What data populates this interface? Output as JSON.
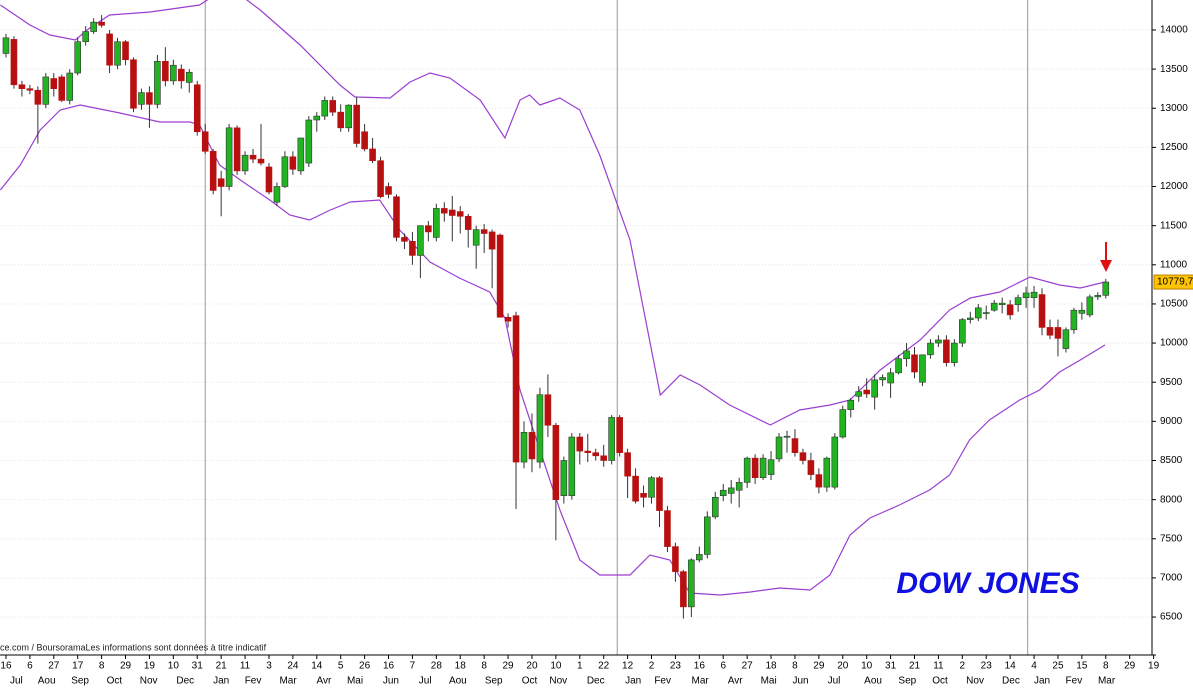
{
  "chart_data": {
    "type": "candlestick",
    "title": "DOW JONES",
    "source": "ce.com / BoursoramaLes informations sont données à titre indicatif",
    "up_color": "#22b322",
    "down_color": "#b81010",
    "band_color": "#9a3fd0",
    "grid": true,
    "ylim": [
      6015,
      14383
    ],
    "yticks": [
      6500,
      7000,
      7500,
      8000,
      8500,
      9000,
      9500,
      10000,
      10500,
      11000,
      11500,
      12000,
      12500,
      13000,
      13500,
      14000
    ],
    "xlim": [
      -0.75,
      143.8
    ],
    "last_price": {
      "value": 10779.7,
      "label": "10779,7"
    },
    "year_lines": [
      25.0,
      76.7,
      128.2
    ],
    "xticks": [
      {
        "value": 0,
        "label": "16"
      },
      {
        "value": 3,
        "label": "6"
      },
      {
        "value": 6,
        "label": "27"
      },
      {
        "value": 9,
        "label": "17"
      },
      {
        "value": 12,
        "label": "8"
      },
      {
        "value": 15,
        "label": "29"
      },
      {
        "value": 18,
        "label": "19"
      },
      {
        "value": 21,
        "label": "10"
      },
      {
        "value": 24,
        "label": "31"
      },
      {
        "value": 27,
        "label": "21"
      },
      {
        "value": 30,
        "label": "11"
      },
      {
        "value": 33,
        "label": "3"
      },
      {
        "value": 36,
        "label": "24"
      },
      {
        "value": 39,
        "label": "14"
      },
      {
        "value": 42,
        "label": "5"
      },
      {
        "value": 45,
        "label": "26"
      },
      {
        "value": 48,
        "label": "16"
      },
      {
        "value": 51,
        "label": "7"
      },
      {
        "value": 54,
        "label": "28"
      },
      {
        "value": 57,
        "label": "18"
      },
      {
        "value": 60,
        "label": "8"
      },
      {
        "value": 63,
        "label": "29"
      },
      {
        "value": 66,
        "label": "20"
      },
      {
        "value": 69,
        "label": "10"
      },
      {
        "value": 72,
        "label": "1"
      },
      {
        "value": 75,
        "label": "22"
      },
      {
        "value": 78,
        "label": "12"
      },
      {
        "value": 81,
        "label": "2"
      },
      {
        "value": 84,
        "label": "23"
      },
      {
        "value": 87,
        "label": "16"
      },
      {
        "value": 90,
        "label": "6"
      },
      {
        "value": 93,
        "label": "27"
      },
      {
        "value": 96,
        "label": "18"
      },
      {
        "value": 99,
        "label": "8"
      },
      {
        "value": 102,
        "label": "29"
      },
      {
        "value": 105,
        "label": "20"
      },
      {
        "value": 108,
        "label": "10"
      },
      {
        "value": 111,
        "label": "31"
      },
      {
        "value": 114,
        "label": "21"
      },
      {
        "value": 117,
        "label": "11"
      },
      {
        "value": 120,
        "label": "2"
      },
      {
        "value": 123,
        "label": "23"
      },
      {
        "value": 126,
        "label": "14"
      },
      {
        "value": 129,
        "label": "4"
      },
      {
        "value": 132,
        "label": "25"
      },
      {
        "value": 135,
        "label": "15"
      },
      {
        "value": 138,
        "label": "8"
      },
      {
        "value": 141,
        "label": "29"
      },
      {
        "value": 144,
        "label": "19"
      }
    ],
    "month_ticks": [
      {
        "value": 1.3,
        "label": "Jul"
      },
      {
        "value": 5.1,
        "label": "Aou"
      },
      {
        "value": 9.3,
        "label": "Sep"
      },
      {
        "value": 13.6,
        "label": "Oct"
      },
      {
        "value": 17.9,
        "label": "Nov"
      },
      {
        "value": 22.5,
        "label": "Dec"
      },
      {
        "value": 27.0,
        "label": "Jan"
      },
      {
        "value": 31.0,
        "label": "Fev"
      },
      {
        "value": 35.4,
        "label": "Mar"
      },
      {
        "value": 39.9,
        "label": "Avr"
      },
      {
        "value": 43.8,
        "label": "Mai"
      },
      {
        "value": 48.3,
        "label": "Jun"
      },
      {
        "value": 52.6,
        "label": "Jul"
      },
      {
        "value": 56.7,
        "label": "Aou"
      },
      {
        "value": 61.2,
        "label": "Sep"
      },
      {
        "value": 65.7,
        "label": "Oct"
      },
      {
        "value": 69.3,
        "label": "Nov"
      },
      {
        "value": 74.0,
        "label": "Dec"
      },
      {
        "value": 78.7,
        "label": "Jan"
      },
      {
        "value": 82.4,
        "label": "Fev"
      },
      {
        "value": 87.1,
        "label": "Mar"
      },
      {
        "value": 91.5,
        "label": "Avr"
      },
      {
        "value": 95.7,
        "label": "Mai"
      },
      {
        "value": 99.7,
        "label": "Jun"
      },
      {
        "value": 103.9,
        "label": "Jul"
      },
      {
        "value": 108.8,
        "label": "Aou"
      },
      {
        "value": 113.1,
        "label": "Sep"
      },
      {
        "value": 117.2,
        "label": "Oct"
      },
      {
        "value": 121.6,
        "label": "Nov"
      },
      {
        "value": 126.1,
        "label": "Dec"
      },
      {
        "value": 130.0,
        "label": "Jan"
      },
      {
        "value": 134.0,
        "label": "Fev"
      },
      {
        "value": 138.1,
        "label": "Mar"
      }
    ],
    "ohlc": [
      [
        13700,
        13950,
        13650,
        13900
      ],
      [
        13880,
        13920,
        13250,
        13300
      ],
      [
        13300,
        13350,
        13150,
        13250
      ],
      [
        13250,
        13300,
        13180,
        13230
      ],
      [
        13230,
        13280,
        12550,
        13050
      ],
      [
        13050,
        13450,
        13000,
        13400
      ],
      [
        13380,
        13450,
        13150,
        13250
      ],
      [
        13400,
        13430,
        13080,
        13100
      ],
      [
        13100,
        13500,
        13050,
        13450
      ],
      [
        13450,
        13900,
        13420,
        13850
      ],
      [
        13850,
        14050,
        13800,
        13980
      ],
      [
        13980,
        14150,
        13950,
        14100
      ],
      [
        14100,
        14190,
        14030,
        14060
      ],
      [
        13950,
        14000,
        13450,
        13550
      ],
      [
        13550,
        13900,
        13500,
        13850
      ],
      [
        13850,
        13870,
        13550,
        13620
      ],
      [
        13620,
        13650,
        12950,
        13000
      ],
      [
        13050,
        13250,
        12980,
        13200
      ],
      [
        13200,
        13280,
        12750,
        13050
      ],
      [
        13050,
        13680,
        13000,
        13600
      ],
      [
        13600,
        13780,
        13280,
        13350
      ],
      [
        13350,
        13620,
        13300,
        13550
      ],
      [
        13500,
        13560,
        13250,
        13350
      ],
      [
        13330,
        13500,
        13200,
        13460
      ],
      [
        13300,
        13350,
        12650,
        12700
      ],
      [
        12700,
        12800,
        12420,
        12450
      ],
      [
        12450,
        12480,
        11900,
        11950
      ],
      [
        12100,
        12200,
        11620,
        12000
      ],
      [
        12000,
        12800,
        11950,
        12750
      ],
      [
        12750,
        12780,
        12150,
        12200
      ],
      [
        12200,
        12450,
        12150,
        12400
      ],
      [
        12400,
        12480,
        12300,
        12350
      ],
      [
        12350,
        12800,
        12270,
        12300
      ],
      [
        12250,
        12300,
        11900,
        11930
      ],
      [
        11800,
        12050,
        11750,
        12000
      ],
      [
        12000,
        12450,
        11980,
        12380
      ],
      [
        12380,
        12450,
        12150,
        12220
      ],
      [
        12200,
        12620,
        12150,
        12620
      ],
      [
        12300,
        12900,
        12250,
        12850
      ],
      [
        12850,
        12950,
        12700,
        12900
      ],
      [
        12900,
        13150,
        12850,
        13100
      ],
      [
        13100,
        13150,
        12900,
        12950
      ],
      [
        12950,
        13050,
        12700,
        12750
      ],
      [
        12750,
        13050,
        12700,
        13040
      ],
      [
        13040,
        13150,
        12500,
        12550
      ],
      [
        12700,
        12800,
        12450,
        12480
      ],
      [
        12480,
        12620,
        12300,
        12330
      ],
      [
        12330,
        12380,
        11850,
        11870
      ],
      [
        12000,
        12050,
        11850,
        11900
      ],
      [
        11870,
        11900,
        11300,
        11350
      ],
      [
        11350,
        11400,
        11200,
        11300
      ],
      [
        11300,
        11420,
        11000,
        11120
      ],
      [
        11120,
        11500,
        10830,
        11500
      ],
      [
        11500,
        11560,
        11300,
        11420
      ],
      [
        11350,
        11780,
        11300,
        11720
      ],
      [
        11720,
        11800,
        11550,
        11660
      ],
      [
        11700,
        11880,
        11300,
        11630
      ],
      [
        11680,
        11750,
        11400,
        11620
      ],
      [
        11620,
        11650,
        11220,
        11450
      ],
      [
        11250,
        11500,
        10950,
        11450
      ],
      [
        11450,
        11520,
        11150,
        11400
      ],
      [
        11420,
        11450,
        10700,
        11200
      ],
      [
        11380,
        11400,
        10350,
        10330
      ],
      [
        10330,
        10380,
        10200,
        10280
      ],
      [
        10350,
        10400,
        7880,
        8480
      ],
      [
        8480,
        9000,
        8400,
        8860
      ],
      [
        8860,
        9100,
        8350,
        8520
      ],
      [
        8480,
        9430,
        8400,
        9340
      ],
      [
        9340,
        9600,
        8800,
        8950
      ],
      [
        8950,
        8980,
        7480,
        8000
      ],
      [
        8050,
        8550,
        7950,
        8500
      ],
      [
        8050,
        8850,
        8000,
        8800
      ],
      [
        8800,
        8850,
        8450,
        8620
      ],
      [
        8620,
        8840,
        8480,
        8600
      ],
      [
        8600,
        8650,
        8500,
        8560
      ],
      [
        8560,
        8700,
        8420,
        8500
      ],
      [
        8500,
        9080,
        8450,
        9050
      ],
      [
        9050,
        9080,
        8550,
        8600
      ],
      [
        8600,
        8650,
        8020,
        8300
      ],
      [
        8300,
        8400,
        7950,
        7980
      ],
      [
        8080,
        8180,
        7900,
        8030
      ],
      [
        8030,
        8300,
        7950,
        8280
      ],
      [
        8280,
        8300,
        7650,
        7860
      ],
      [
        7860,
        7920,
        7330,
        7400
      ],
      [
        7400,
        7450,
        6950,
        7080
      ],
      [
        7080,
        7100,
        6480,
        6630
      ],
      [
        6630,
        7250,
        6500,
        7230
      ],
      [
        7230,
        7400,
        7200,
        7300
      ],
      [
        7300,
        7850,
        7250,
        7780
      ],
      [
        7780,
        8100,
        7750,
        8030
      ],
      [
        8050,
        8200,
        7980,
        8120
      ],
      [
        8080,
        8250,
        7950,
        8150
      ],
      [
        8120,
        8280,
        7900,
        8220
      ],
      [
        8220,
        8550,
        8150,
        8530
      ],
      [
        8530,
        8580,
        8200,
        8280
      ],
      [
        8280,
        8580,
        8250,
        8530
      ],
      [
        8320,
        8620,
        8250,
        8510
      ],
      [
        8520,
        8850,
        8480,
        8800
      ],
      [
        8800,
        8880,
        8600,
        8810
      ],
      [
        8780,
        8900,
        8550,
        8600
      ],
      [
        8600,
        8650,
        8450,
        8500
      ],
      [
        8500,
        8600,
        8250,
        8320
      ],
      [
        8320,
        8400,
        8080,
        8160
      ],
      [
        8160,
        8550,
        8100,
        8530
      ],
      [
        8160,
        8850,
        8130,
        8800
      ],
      [
        8800,
        9200,
        8780,
        9150
      ],
      [
        9150,
        9300,
        9050,
        9270
      ],
      [
        9320,
        9450,
        9250,
        9380
      ],
      [
        9400,
        9550,
        9300,
        9350
      ],
      [
        9310,
        9600,
        9150,
        9530
      ],
      [
        9530,
        9600,
        9450,
        9560
      ],
      [
        9490,
        9680,
        9300,
        9620
      ],
      [
        9620,
        9850,
        9600,
        9800
      ],
      [
        9800,
        10000,
        9700,
        9900
      ],
      [
        9850,
        9950,
        9550,
        9630
      ],
      [
        9500,
        9850,
        9450,
        9850
      ],
      [
        9850,
        10050,
        9800,
        10000
      ],
      [
        10000,
        10100,
        9950,
        10040
      ],
      [
        10040,
        10100,
        9700,
        9750
      ],
      [
        9750,
        10050,
        9700,
        10000
      ],
      [
        10000,
        10320,
        9950,
        10300
      ],
      [
        10300,
        10400,
        10250,
        10320
      ],
      [
        10320,
        10500,
        10280,
        10450
      ],
      [
        10380,
        10480,
        10300,
        10390
      ],
      [
        10420,
        10550,
        10400,
        10510
      ],
      [
        10490,
        10580,
        10380,
        10510
      ],
      [
        10490,
        10550,
        10300,
        10360
      ],
      [
        10490,
        10620,
        10400,
        10580
      ],
      [
        10580,
        10720,
        10450,
        10640
      ],
      [
        10580,
        10730,
        10450,
        10650
      ],
      [
        10620,
        10700,
        10100,
        10200
      ],
      [
        10200,
        10300,
        10050,
        10100
      ],
      [
        10200,
        10300,
        9830,
        10060
      ],
      [
        9930,
        10200,
        9880,
        10170
      ],
      [
        10170,
        10450,
        10120,
        10420
      ],
      [
        10380,
        10520,
        10300,
        10420
      ],
      [
        10360,
        10620,
        10330,
        10590
      ],
      [
        10590,
        10650,
        10550,
        10610
      ],
      [
        10610,
        10820,
        10570,
        10780
      ]
    ],
    "bands": [
      {
        "x": [
          -0.7,
          3.0,
          5.5,
          8.7,
          10.5,
          13.0,
          18.1,
          24.3,
          26.2,
          29.4,
          31.9,
          36.9,
          41.9,
          43.8,
          48.2,
          50.7,
          53.2,
          55.7,
          59.5,
          62.6,
          64.5,
          65.7,
          67.0,
          69.5,
          72.0,
          74.5,
          78.3,
          82.1,
          84.6,
          87.1,
          90.8,
          95.9,
          99.6,
          103.4,
          105.9,
          109.7,
          114.7,
          118.4,
          121.0,
          124.7,
          128.5,
          132.2,
          134.8,
          137.9
        ],
        "values": [
          14319,
          14064,
          13936,
          13872,
          14025,
          14191,
          14230,
          14319,
          14447,
          14447,
          14255,
          13808,
          13297,
          13144,
          13131,
          13335,
          13450,
          13386,
          13105,
          12620,
          13105,
          13169,
          13042,
          13131,
          12978,
          12403,
          11317,
          9337,
          9592,
          9464,
          9209,
          8953,
          9145,
          9209,
          9273,
          9656,
          10039,
          10422,
          10576,
          10652,
          10844,
          10742,
          10704,
          10780
        ]
      },
      {
        "x": [
          -0.7,
          1.8,
          4.3,
          6.8,
          9.3,
          14.3,
          19.3,
          23.1,
          24.3,
          26.8,
          29.4,
          33.1,
          35.6,
          38.1,
          40.7,
          43.2,
          46.9,
          49.4,
          53.2,
          56.9,
          60.7,
          62.6,
          64.5,
          67.0,
          69.5,
          72.0,
          74.5,
          78.3,
          80.8,
          83.3,
          85.8,
          89.6,
          93.4,
          97.1,
          100.9,
          103.4,
          105.9,
          108.4,
          112.1,
          115.9,
          118.4,
          120.9,
          123.4,
          127.2,
          129.7,
          132.2,
          134.8,
          137.9
        ],
        "values": [
          11956,
          12275,
          12722,
          12978,
          13042,
          12939,
          12824,
          12824,
          12786,
          12275,
          12083,
          11828,
          11636,
          11572,
          11700,
          11802,
          11828,
          11445,
          11036,
          10831,
          10652,
          10320,
          9400,
          8634,
          7867,
          7229,
          7037,
          7037,
          7292,
          7229,
          6807,
          6781,
          6820,
          6871,
          6845,
          7037,
          7548,
          7765,
          7931,
          8123,
          8314,
          8762,
          9017,
          9273,
          9400,
          9630,
          9784,
          9975
        ]
      }
    ]
  }
}
